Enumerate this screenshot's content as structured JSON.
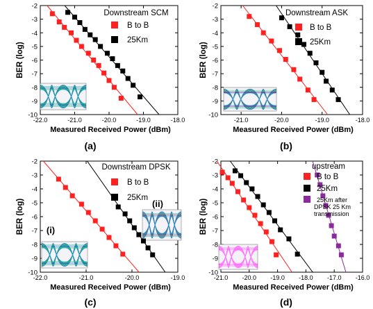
{
  "figure_type": "4-panel BER vs received power",
  "chart_data": [
    {
      "type": "scatter",
      "panel_label": "(a)",
      "title": "Downstream SCM",
      "xlabel": "Measured Received Power (dBm)",
      "ylabel": "BER (log)",
      "xlim": [
        -22.0,
        -18.0
      ],
      "ylim": [
        -10,
        -2
      ],
      "xticks": [
        "-22.0",
        "-21.0",
        "-20.0",
        "-19.0",
        "-18.0"
      ],
      "yticks": [
        "-2",
        "-3",
        "-4",
        "-5",
        "-6",
        "-7",
        "-8",
        "-9",
        "-10"
      ],
      "legend_placement": "top-right",
      "insets": [
        {
          "label": "",
          "name": "eye-diagram",
          "colors": [
            "#1a3fb0",
            "#22b0d8",
            "#3bc85a"
          ]
        }
      ],
      "series": [
        {
          "name": "B to B",
          "color": "#ff2020",
          "marker": "square",
          "x": [
            -21.65,
            -21.45,
            -21.3,
            -21.1,
            -20.95,
            -20.8,
            -20.6,
            -20.45,
            -20.3,
            -20.15,
            -20.0,
            -19.85,
            -19.65
          ],
          "y": [
            -2.6,
            -3.2,
            -3.6,
            -4.0,
            -4.55,
            -5.0,
            -5.5,
            -6.0,
            -6.4,
            -6.95,
            -7.5,
            -8.0,
            -8.8
          ]
        },
        {
          "name": "25Km",
          "color": "#000000",
          "marker": "square",
          "x": [
            -21.2,
            -21.0,
            -20.85,
            -20.7,
            -20.55,
            -20.4,
            -20.25,
            -20.05,
            -19.9,
            -19.75,
            -19.6,
            -19.45,
            -19.3,
            -19.1
          ],
          "y": [
            -2.5,
            -2.85,
            -3.25,
            -3.75,
            -4.15,
            -4.5,
            -5.0,
            -5.5,
            -5.9,
            -6.4,
            -6.8,
            -7.35,
            -7.85,
            -8.7
          ]
        }
      ]
    },
    {
      "type": "scatter",
      "panel_label": "(b)",
      "title": "Downstream ASK",
      "xlabel": "Measured Received Power (dBm)",
      "ylabel": "BER (log)",
      "xlim": [
        -21.5,
        -18.0
      ],
      "ylim": [
        -10,
        -2
      ],
      "xticks": [
        "-21.0",
        "-20.0",
        "-19.0",
        "-18.0"
      ],
      "yticks": [
        "-2",
        "-3",
        "-4",
        "-5",
        "-6",
        "-7",
        "-8",
        "-9",
        "-10"
      ],
      "legend_placement": "top-right",
      "insets": [
        {
          "label": "",
          "name": "eye-diagram",
          "colors": [
            "#1a3fb0",
            "#22b0d8",
            "#3bc85a",
            "#c03090"
          ]
        }
      ],
      "series": [
        {
          "name": "B to B",
          "color": "#ff2020",
          "marker": "square",
          "x": [
            -20.8,
            -20.6,
            -20.45,
            -20.25,
            -20.05,
            -19.9,
            -19.7,
            -19.55,
            -19.35,
            -19.2
          ],
          "y": [
            -2.8,
            -3.4,
            -4.0,
            -4.6,
            -5.3,
            -5.95,
            -6.7,
            -7.4,
            -8.2,
            -8.9
          ]
        },
        {
          "name": "25Km",
          "color": "#000000",
          "marker": "square",
          "x": [
            -20.0,
            -19.8,
            -19.6,
            -19.45,
            -19.3,
            -19.15,
            -19.0,
            -18.9,
            -18.75,
            -18.6
          ],
          "y": [
            -2.9,
            -3.55,
            -4.15,
            -4.85,
            -5.5,
            -6.2,
            -6.9,
            -7.55,
            -8.2,
            -8.9
          ]
        }
      ]
    },
    {
      "type": "scatter",
      "panel_label": "(c)",
      "title": "Downstream DPSK",
      "xlabel": "Measured Received Power (dBm)",
      "ylabel": "BER (log)",
      "xlim": [
        -22.0,
        -19.0
      ],
      "ylim": [
        -10,
        -2
      ],
      "xticks": [
        "-22.0",
        "-21.0",
        "-20.0",
        "-19.0"
      ],
      "yticks": [
        "-2",
        "-3",
        "-4",
        "-5",
        "-6",
        "-7",
        "-8",
        "-9",
        "-10"
      ],
      "legend_placement": "top-right",
      "insets": [
        {
          "label": "(i)",
          "name": "eye-diagram-i",
          "colors": [
            "#1a3fb0",
            "#22b0d8",
            "#3bc85a"
          ]
        },
        {
          "label": "(ii)",
          "name": "eye-diagram-ii",
          "colors": [
            "#1a3fb0",
            "#22b0d8",
            "#3bc85a",
            "#c03090"
          ]
        }
      ],
      "series": [
        {
          "name": "B to B",
          "color": "#ff2020",
          "marker": "square",
          "x": [
            -21.6,
            -21.45,
            -21.3,
            -21.1,
            -20.95,
            -20.8,
            -20.65,
            -20.5,
            -20.35,
            -20.2
          ],
          "y": [
            -3.3,
            -3.9,
            -4.5,
            -5.1,
            -5.7,
            -6.3,
            -6.9,
            -7.5,
            -8.1,
            -8.7
          ]
        },
        {
          "name": "25Km",
          "color": "#000000",
          "marker": "square",
          "x": [
            -20.3,
            -20.15,
            -20.05,
            -19.95,
            -19.85,
            -19.75,
            -19.65,
            -19.55
          ],
          "y": [
            -5.3,
            -5.8,
            -6.3,
            -6.8,
            -7.3,
            -7.75,
            -8.25,
            -8.75
          ]
        }
      ]
    },
    {
      "type": "scatter",
      "panel_label": "(d)",
      "title": "upstream",
      "xlabel": "Measured Received Power (dBm)",
      "ylabel": "BER (log)",
      "xlim": [
        -21.0,
        -16.0
      ],
      "ylim": [
        -10,
        -2
      ],
      "xticks": [
        "-21.0",
        "-20.0",
        "-19.0",
        "-18.0",
        "-17.0",
        "-16.0"
      ],
      "yticks": [
        "-2",
        "-3",
        "-4",
        "-5",
        "-6",
        "-7",
        "-8",
        "-9",
        "-10"
      ],
      "legend_placement": "top-right",
      "insets": [
        {
          "label": "",
          "name": "eye-diagram",
          "colors": [
            "#ff40ff",
            "#ff80ff",
            "#ffb0ff"
          ]
        }
      ],
      "series": [
        {
          "name": "B to B",
          "color": "#ff2020",
          "marker": "square",
          "x": [
            -20.95,
            -20.75,
            -20.6,
            -20.4,
            -20.2,
            -20.0,
            -19.8,
            -19.6,
            -19.4,
            -19.2,
            -19.05
          ],
          "y": [
            -2.8,
            -3.2,
            -3.6,
            -4.2,
            -4.8,
            -5.35,
            -5.9,
            -6.5,
            -7.1,
            -7.8,
            -8.75
          ]
        },
        {
          "name": "25Km",
          "color": "#000000",
          "marker": "square",
          "x": [
            -20.5,
            -20.3,
            -20.1,
            -19.9,
            -19.7,
            -19.5,
            -19.3,
            -19.1,
            -18.9,
            -18.6,
            -18.3
          ],
          "y": [
            -2.7,
            -3.05,
            -3.55,
            -4.0,
            -4.55,
            -5.15,
            -5.7,
            -6.3,
            -6.95,
            -7.6,
            -8.7
          ]
        },
        {
          "name": "25Km after DPSK 25 Km transmission",
          "color": "#8b2a9e",
          "marker": "square",
          "x": [
            -17.6,
            -17.5,
            -17.4,
            -17.3,
            -17.2,
            -17.1,
            -17.0,
            -16.85,
            -16.75
          ],
          "y": [
            -3.0,
            -3.7,
            -4.5,
            -5.2,
            -5.9,
            -6.65,
            -7.4,
            -8.1,
            -8.75
          ]
        }
      ]
    }
  ]
}
